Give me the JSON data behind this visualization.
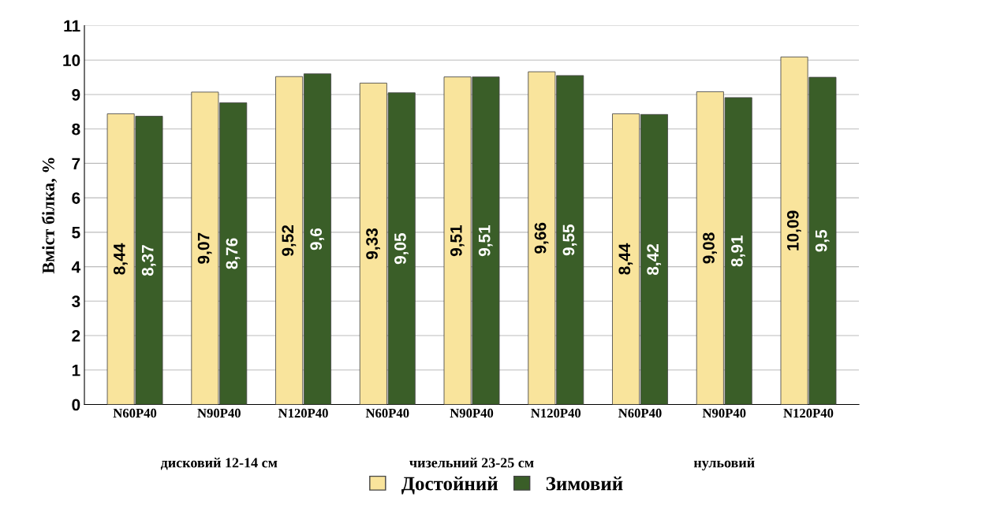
{
  "chart_data": {
    "type": "bar",
    "ylabel": "Вміст білка, %",
    "categories": [
      "N60P40",
      "N90P40",
      "N120P40",
      "N60P40",
      "N90P40",
      "N120P40",
      "N60P40",
      "N90P40",
      "N120P40"
    ],
    "series": [
      {
        "name": "Достойний",
        "color": "#f9e49c",
        "values": [
          8.44,
          9.07,
          9.52,
          9.33,
          9.51,
          9.66,
          8.44,
          9.08,
          10.09
        ]
      },
      {
        "name": "Зимовий",
        "color": "#3a5e28",
        "values": [
          8.37,
          8.76,
          9.6,
          9.05,
          9.51,
          9.55,
          8.42,
          8.91,
          9.5
        ]
      }
    ],
    "value_labels": [
      [
        "8,44",
        "9,07",
        "9,52",
        "9,33",
        "9,51",
        "9,66",
        "8,44",
        "9,08",
        "10,09"
      ],
      [
        "8,37",
        "8,76",
        "9,6",
        "9,05",
        "9,51",
        "9,55",
        "8,42",
        "8,91",
        "9,5"
      ]
    ],
    "annotations": [
      "дисковий 12-14 см",
      "чизельний 23-25 см",
      "нульовий"
    ],
    "ylim": [
      0,
      11
    ],
    "yticks": [
      0,
      1,
      2,
      3,
      4,
      5,
      6,
      7,
      8,
      9,
      10,
      11
    ],
    "grid": "y",
    "legend": "bottom"
  }
}
